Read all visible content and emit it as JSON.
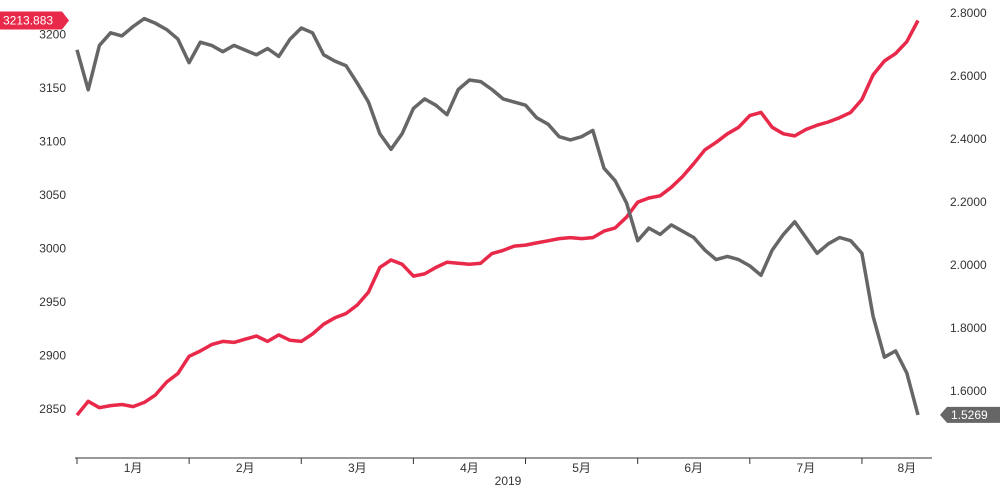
{
  "chart_data": {
    "type": "line",
    "x_label": "2019",
    "categories": [
      null,
      null,
      null,
      null,
      null,
      "1月",
      null,
      null,
      null,
      null,
      null,
      null,
      null,
      null,
      null,
      "2月",
      null,
      null,
      null,
      null,
      null,
      null,
      null,
      null,
      null,
      "3月",
      null,
      null,
      null,
      null,
      null,
      null,
      null,
      null,
      null,
      "4月",
      null,
      null,
      null,
      null,
      null,
      null,
      null,
      null,
      null,
      "5月",
      null,
      null,
      null,
      null,
      null,
      null,
      null,
      null,
      null,
      "6月",
      null,
      null,
      null,
      null,
      null,
      null,
      null,
      null,
      null,
      "7月",
      null,
      null,
      null,
      null,
      null,
      null,
      null,
      null,
      "8月",
      null
    ],
    "series": [
      {
        "color": "#e8294a",
        "axis": "y",
        "values": [
          2845,
          2858,
          2852,
          2854,
          2855,
          2853,
          2857,
          2864,
          2876,
          2884,
          2900,
          2905,
          2911,
          2914,
          2913,
          2916,
          2919,
          2914,
          2920,
          2915,
          2914,
          2921,
          2930,
          2936,
          2940,
          2948,
          2960,
          2983,
          2990,
          2986,
          2975,
          2977,
          2983,
          2988,
          2987,
          2986,
          2987,
          2996,
          2999,
          3003,
          3004,
          3006,
          3008,
          3010,
          3011,
          3010,
          3011,
          3017,
          3020,
          3030,
          3044,
          3048,
          3050,
          3058,
          3068,
          3080,
          3093,
          3100,
          3108,
          3114,
          3125,
          3128,
          3114,
          3108,
          3106,
          3112,
          3116,
          3119,
          3123,
          3128,
          3140,
          3163,
          3176,
          3183,
          3194,
          3213.883
        ]
      },
      {
        "color": "#666666",
        "axis": "y2",
        "values": [
          2.686,
          2.559,
          2.7,
          2.74,
          2.73,
          2.76,
          2.785,
          2.77,
          2.75,
          2.72,
          2.645,
          2.71,
          2.7,
          2.68,
          2.7,
          2.685,
          2.67,
          2.69,
          2.665,
          2.72,
          2.755,
          2.74,
          2.67,
          2.65,
          2.635,
          2.58,
          2.52,
          2.42,
          2.37,
          2.42,
          2.5,
          2.53,
          2.51,
          2.48,
          2.56,
          2.59,
          2.585,
          2.56,
          2.53,
          2.52,
          2.51,
          2.47,
          2.45,
          2.41,
          2.4,
          2.41,
          2.43,
          2.31,
          2.27,
          2.2,
          2.08,
          2.12,
          2.1,
          2.13,
          2.11,
          2.09,
          2.05,
          2.02,
          2.03,
          2.02,
          2.0,
          1.97,
          2.05,
          2.1,
          2.14,
          2.09,
          2.04,
          2.07,
          2.09,
          2.08,
          2.04,
          1.84,
          1.71,
          1.73,
          1.66,
          1.5269
        ]
      }
    ],
    "ylim": [
      2805,
      3233
    ],
    "yticks": [
      2850,
      2900,
      2950,
      3000,
      3050,
      3100,
      3150,
      3200
    ],
    "y2lim": [
      1.39,
      2.844
    ],
    "y2ticks": [
      {
        "value": 1.6,
        "label": "1.6000"
      },
      {
        "value": 1.8,
        "label": "1.8000"
      },
      {
        "value": 2.0,
        "label": "2.0000"
      },
      {
        "value": 2.2,
        "label": "2.2000"
      },
      {
        "value": 2.4,
        "label": "2.4000"
      },
      {
        "value": 2.6,
        "label": "2.6000"
      },
      {
        "value": 2.8,
        "label": "2.8000"
      }
    ],
    "grid": false
  }
}
